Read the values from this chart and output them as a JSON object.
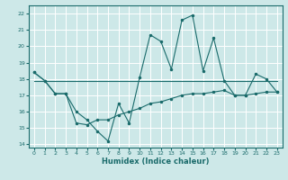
{
  "title": "",
  "xlabel": "Humidex (Indice chaleur)",
  "xlim": [
    -0.5,
    23.5
  ],
  "ylim": [
    13.8,
    22.5
  ],
  "yticks": [
    14,
    15,
    16,
    17,
    18,
    19,
    20,
    21,
    22
  ],
  "xticks": [
    0,
    1,
    2,
    3,
    4,
    5,
    6,
    7,
    8,
    9,
    10,
    11,
    12,
    13,
    14,
    15,
    16,
    17,
    18,
    19,
    20,
    21,
    22,
    23
  ],
  "bg_color": "#cde8e8",
  "line_color": "#1a6b6b",
  "grid_color": "#ffffff",
  "series1": {
    "x": [
      0,
      1,
      2,
      3,
      4,
      5,
      6,
      7,
      8,
      9,
      10,
      11,
      12,
      13,
      14,
      15,
      16,
      17,
      18,
      19,
      20,
      21,
      22,
      23
    ],
    "y": [
      18.4,
      17.9,
      17.1,
      17.1,
      16.0,
      15.5,
      14.8,
      14.2,
      16.5,
      15.3,
      18.1,
      20.7,
      20.3,
      18.6,
      21.6,
      21.9,
      18.5,
      20.5,
      17.9,
      17.0,
      17.0,
      18.3,
      18.0,
      17.2
    ]
  },
  "series2": {
    "x": [
      0,
      1,
      2,
      3,
      4,
      5,
      6,
      7,
      8,
      9,
      10,
      11,
      12,
      13,
      14,
      15,
      16,
      17,
      18,
      19,
      20,
      21,
      22,
      23
    ],
    "y": [
      18.4,
      17.9,
      17.1,
      17.1,
      15.3,
      15.2,
      15.5,
      15.5,
      15.8,
      16.0,
      16.2,
      16.5,
      16.6,
      16.8,
      17.0,
      17.1,
      17.1,
      17.2,
      17.3,
      17.0,
      17.0,
      17.1,
      17.2,
      17.2
    ]
  },
  "series3": {
    "x": [
      0,
      23
    ],
    "y": [
      17.9,
      17.9
    ]
  }
}
